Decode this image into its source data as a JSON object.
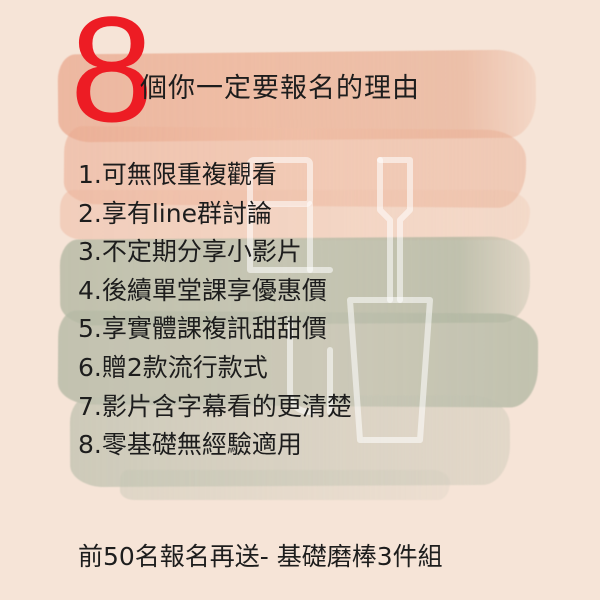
{
  "colors": {
    "background": "#f6e4d7",
    "accent_number": "#ed1c24",
    "text": "#1d1d1d",
    "brush_peach": "#eab094",
    "brush_green": "#b8bca6"
  },
  "icons": [
    "shovel-icon",
    "garden-tools-icon"
  ],
  "headline": {
    "number": "8",
    "text": "個你一定要報名的理由"
  },
  "reasons": [
    "1.可無限重複觀看",
    "2.享有line群討論",
    "3.不定期分享小影片",
    "4.後續單堂課享優惠價",
    "5.享實體課複訊甜甜價",
    "6.贈2款流行款式",
    "7.影片含字幕看的更清楚",
    "8.零基礎無經驗適用"
  ],
  "footer": "前50名報名再送- 基礎磨棒3件組"
}
